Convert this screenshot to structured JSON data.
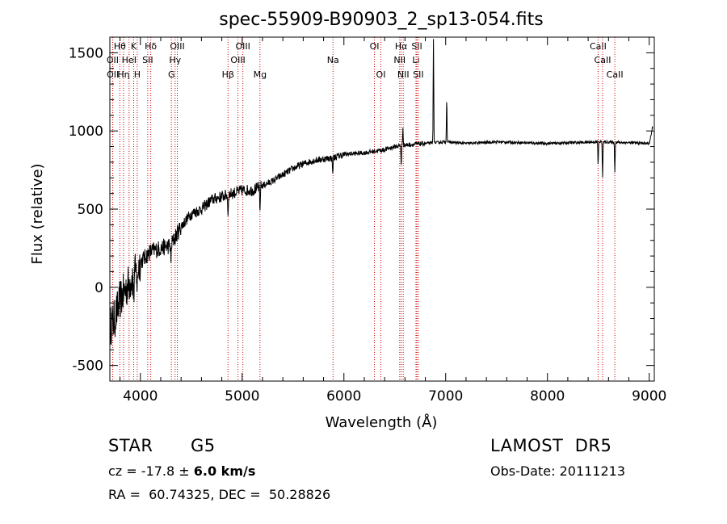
{
  "chart_data": {
    "type": "line",
    "title": "spec-55909-B90903_2_sp13-054.fits",
    "xlabel": "Wavelength (Å)",
    "ylabel": "Flux (relative)",
    "xlim": [
      3700,
      9050
    ],
    "ylim": [
      -600,
      1600
    ],
    "x_ticks": [
      4000,
      5000,
      6000,
      7000,
      8000,
      9000
    ],
    "y_ticks": [
      -500,
      0,
      500,
      1000,
      1500
    ],
    "grid": false,
    "line_color": "#000000",
    "marker_color": "#cc0000",
    "spectral_lines": [
      {
        "label": "Hθ",
        "wavelength": 3798,
        "row": 0
      },
      {
        "label": "K",
        "wavelength": 3934,
        "row": 0
      },
      {
        "label": "Hδ",
        "wavelength": 4102,
        "row": 0
      },
      {
        "label": "OIII",
        "wavelength": 4363,
        "row": 0
      },
      {
        "label": "OIII",
        "wavelength": 5007,
        "row": 0
      },
      {
        "label": "OI",
        "wavelength": 6300,
        "row": 0
      },
      {
        "label": "Hα",
        "wavelength": 6563,
        "row": 0
      },
      {
        "label": "SII",
        "wavelength": 6717,
        "row": 0
      },
      {
        "label": "CaII",
        "wavelength": 8498,
        "row": 0
      },
      {
        "label": "OII",
        "wavelength": 3727,
        "row": 1
      },
      {
        "label": "HeI",
        "wavelength": 3889,
        "row": 1
      },
      {
        "label": "SII",
        "wavelength": 4072,
        "row": 1
      },
      {
        "label": "Hγ",
        "wavelength": 4341,
        "row": 1
      },
      {
        "label": "OIII",
        "wavelength": 4959,
        "row": 1
      },
      {
        "label": "Na",
        "wavelength": 5893,
        "row": 1
      },
      {
        "label": "NII",
        "wavelength": 6548,
        "row": 1
      },
      {
        "label": "Li",
        "wavelength": 6708,
        "row": 1
      },
      {
        "label": "CaII",
        "wavelength": 8542,
        "row": 1
      },
      {
        "label": "OII",
        "wavelength": 3729,
        "row": 2
      },
      {
        "label": "Hη",
        "wavelength": 3835,
        "row": 2
      },
      {
        "label": "H",
        "wavelength": 3969,
        "row": 2
      },
      {
        "label": "G",
        "wavelength": 4305,
        "row": 2
      },
      {
        "label": "Hβ",
        "wavelength": 4861,
        "row": 2
      },
      {
        "label": "Mg",
        "wavelength": 5175,
        "row": 2
      },
      {
        "label": "OI",
        "wavelength": 6363,
        "row": 2
      },
      {
        "label": "NII",
        "wavelength": 6583,
        "row": 2
      },
      {
        "label": "SII",
        "wavelength": 6731,
        "row": 2
      },
      {
        "label": "CaII",
        "wavelength": 8662,
        "row": 2
      }
    ],
    "continuum": {
      "x": [
        3700,
        3750,
        3800,
        3850,
        3900,
        3950,
        4000,
        4100,
        4200,
        4300,
        4400,
        4500,
        4600,
        4700,
        4800,
        4900,
        5000,
        5100,
        5200,
        5300,
        5400,
        5500,
        5600,
        5700,
        5800,
        5900,
        6000,
        6200,
        6400,
        6500,
        6600,
        6700,
        6800,
        7000,
        7200,
        7500,
        8000,
        8500,
        8800,
        9000,
        9030
      ],
      "y": [
        -250,
        -200,
        -80,
        -20,
        40,
        90,
        160,
        230,
        250,
        270,
        390,
        470,
        500,
        560,
        580,
        600,
        620,
        620,
        650,
        680,
        720,
        760,
        790,
        810,
        820,
        830,
        850,
        860,
        880,
        900,
        910,
        915,
        920,
        930,
        920,
        930,
        920,
        930,
        925,
        920,
        1000
      ]
    },
    "features": [
      {
        "x": 3934,
        "y": -80
      },
      {
        "x": 3969,
        "y": -40
      },
      {
        "x": 4300,
        "y": 160
      },
      {
        "x": 4861,
        "y": 450
      },
      {
        "x": 5175,
        "y": 470
      },
      {
        "x": 5890,
        "y": 720
      },
      {
        "x": 6563,
        "y": 780
      },
      {
        "x": 6580,
        "y": 1020
      },
      {
        "x": 6880,
        "y": 1590
      },
      {
        "x": 7010,
        "y": 1210
      },
      {
        "x": 8498,
        "y": 780
      },
      {
        "x": 8542,
        "y": 700
      },
      {
        "x": 8662,
        "y": 740
      },
      {
        "x": 9030,
        "y": 1030
      }
    ]
  },
  "info": {
    "object_class": "STAR",
    "subclass": "G5",
    "survey": "LAMOST  DR5",
    "cz_label": "cz = ",
    "cz_value": "-17.8 ± ",
    "cz_error": "6.0 km/s",
    "obs_date": "Obs-Date: 20111213",
    "coords": "RA =  60.74325, DEC =  50.28826"
  }
}
